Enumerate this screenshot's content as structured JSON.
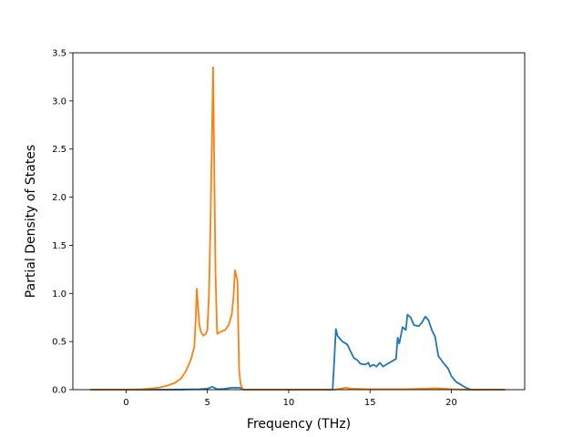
{
  "chart_data": {
    "type": "line",
    "title": "",
    "xlabel": "Frequency (THz)",
    "ylabel": "Partial Density of States",
    "xlim": [
      -3.27,
      24.51
    ],
    "ylim": [
      0,
      3.5
    ],
    "grid": false,
    "x_ticks": [
      {
        "value": 0,
        "label": "0"
      },
      {
        "value": 5,
        "label": "5"
      },
      {
        "value": 10,
        "label": "10"
      },
      {
        "value": 15,
        "label": "15"
      },
      {
        "value": 20,
        "label": "20"
      }
    ],
    "y_ticks": [
      {
        "value": 0.0,
        "label": "0.0"
      },
      {
        "value": 0.5,
        "label": "0.5"
      },
      {
        "value": 1.0,
        "label": "1.0"
      },
      {
        "value": 1.5,
        "label": "1.5"
      },
      {
        "value": 2.0,
        "label": "2.0"
      },
      {
        "value": 2.5,
        "label": "2.5"
      },
      {
        "value": 3.0,
        "label": "3.0"
      },
      {
        "value": 3.5,
        "label": "3.5"
      }
    ],
    "series": [
      {
        "color": "#1f77b4",
        "points": [
          [
            -2.2,
            0
          ],
          [
            0,
            0
          ],
          [
            2.5,
            0
          ],
          [
            3.5,
            0.002
          ],
          [
            4.5,
            0.005
          ],
          [
            5.0,
            0.01
          ],
          [
            5.3,
            0.03
          ],
          [
            5.6,
            0.005
          ],
          [
            6.0,
            0.008
          ],
          [
            6.5,
            0.02
          ],
          [
            7.0,
            0.02
          ],
          [
            7.2,
            0
          ],
          [
            10,
            0
          ],
          [
            12.7,
            0
          ],
          [
            12.8,
            0.3
          ],
          [
            12.9,
            0.63
          ],
          [
            13.0,
            0.56
          ],
          [
            13.3,
            0.5
          ],
          [
            13.6,
            0.47
          ],
          [
            13.8,
            0.4
          ],
          [
            14.0,
            0.33
          ],
          [
            14.2,
            0.31
          ],
          [
            14.4,
            0.27
          ],
          [
            14.7,
            0.26
          ],
          [
            14.9,
            0.28
          ],
          [
            15.0,
            0.24
          ],
          [
            15.2,
            0.26
          ],
          [
            15.4,
            0.24
          ],
          [
            15.6,
            0.28
          ],
          [
            15.8,
            0.24
          ],
          [
            16.0,
            0.26
          ],
          [
            16.2,
            0.28
          ],
          [
            16.4,
            0.3
          ],
          [
            16.6,
            0.32
          ],
          [
            16.7,
            0.54
          ],
          [
            16.8,
            0.48
          ],
          [
            17.0,
            0.65
          ],
          [
            17.2,
            0.62
          ],
          [
            17.3,
            0.78
          ],
          [
            17.5,
            0.75
          ],
          [
            17.7,
            0.67
          ],
          [
            18.0,
            0.66
          ],
          [
            18.2,
            0.7
          ],
          [
            18.4,
            0.76
          ],
          [
            18.6,
            0.72
          ],
          [
            18.8,
            0.62
          ],
          [
            19.0,
            0.55
          ],
          [
            19.2,
            0.35
          ],
          [
            19.5,
            0.28
          ],
          [
            19.8,
            0.22
          ],
          [
            20.0,
            0.14
          ],
          [
            20.3,
            0.08
          ],
          [
            20.6,
            0.05
          ],
          [
            20.9,
            0.02
          ],
          [
            21.2,
            0
          ],
          [
            23.3,
            0
          ]
        ]
      },
      {
        "color": "#ff7f0e",
        "points": [
          [
            -2.2,
            0
          ],
          [
            0,
            0
          ],
          [
            1.0,
            0.005
          ],
          [
            2.0,
            0.02
          ],
          [
            2.5,
            0.04
          ],
          [
            3.0,
            0.07
          ],
          [
            3.4,
            0.12
          ],
          [
            3.7,
            0.2
          ],
          [
            4.0,
            0.32
          ],
          [
            4.2,
            0.45
          ],
          [
            4.3,
            0.8
          ],
          [
            4.35,
            1.05
          ],
          [
            4.5,
            0.68
          ],
          [
            4.6,
            0.6
          ],
          [
            4.75,
            0.56
          ],
          [
            4.9,
            0.58
          ],
          [
            5.0,
            0.62
          ],
          [
            5.1,
            1.0
          ],
          [
            5.2,
            1.8
          ],
          [
            5.35,
            3.35
          ],
          [
            5.5,
            1.2
          ],
          [
            5.6,
            0.58
          ],
          [
            5.8,
            0.6
          ],
          [
            6.1,
            0.62
          ],
          [
            6.3,
            0.67
          ],
          [
            6.5,
            0.78
          ],
          [
            6.6,
            0.95
          ],
          [
            6.7,
            1.24
          ],
          [
            6.85,
            1.13
          ],
          [
            6.95,
            0.2
          ],
          [
            7.05,
            0.05
          ],
          [
            7.2,
            0
          ],
          [
            10,
            0
          ],
          [
            12.8,
            0
          ],
          [
            13.2,
            0.01
          ],
          [
            13.5,
            0.02
          ],
          [
            13.8,
            0.01
          ],
          [
            15,
            0.005
          ],
          [
            17,
            0.005
          ],
          [
            18.5,
            0.01
          ],
          [
            19.0,
            0.015
          ],
          [
            19.5,
            0.01
          ],
          [
            20.0,
            0.005
          ],
          [
            21,
            0
          ],
          [
            23.3,
            0
          ]
        ]
      }
    ]
  }
}
